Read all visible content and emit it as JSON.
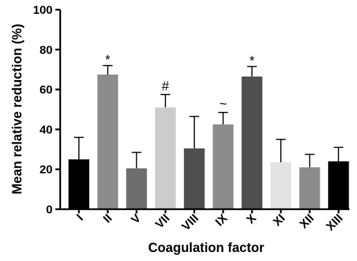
{
  "chart_data": {
    "type": "bar",
    "xlabel": "Coagulation factor",
    "ylabel": "Mean relative reduction (%)",
    "ylim": [
      0,
      100
    ],
    "yticks": [
      0,
      20,
      40,
      60,
      80,
      100
    ],
    "grid": false,
    "categories": [
      "I",
      "II",
      "V",
      "VII",
      "VIII",
      "IX",
      "X",
      "XI",
      "XII",
      "XIII"
    ],
    "values": [
      25,
      67.5,
      20.5,
      51,
      30.5,
      42.5,
      66.5,
      23.5,
      21,
      24
    ],
    "error_upper": [
      11,
      4.5,
      8,
      6.5,
      16,
      6,
      5,
      11.5,
      6.5,
      7
    ],
    "annotations": [
      "",
      "*",
      "",
      "#",
      "",
      "~",
      "*",
      "",
      "",
      ""
    ],
    "colors": [
      "#000000",
      "#8c8c8c",
      "#6e6e6e",
      "#cccccc",
      "#4f4f4f",
      "#8c8c8c",
      "#4f4f4f",
      "#e3e3e3",
      "#8c8c8c",
      "#000000"
    ]
  }
}
